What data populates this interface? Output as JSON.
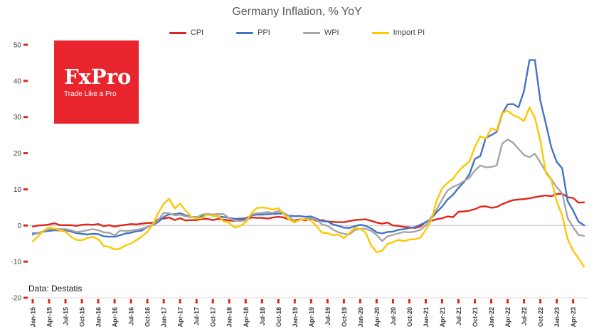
{
  "title": "Germany Inflation, % YoY",
  "footnote": "Data: Destatis",
  "logo": {
    "name": "FxPro",
    "tagline": "Trade Like a Pro",
    "bg": "#e8252d"
  },
  "legend": [
    {
      "label": "CPI",
      "color": "#e0261c"
    },
    {
      "label": "PPI",
      "color": "#4472c4"
    },
    {
      "label": "WPI",
      "color": "#a6a6a6"
    },
    {
      "label": "Import PI",
      "color": "#fdc800"
    }
  ],
  "chart_data": {
    "type": "line",
    "title": "Germany Inflation, % YoY",
    "xlabel": "",
    "ylabel": "",
    "ylim": [
      -20,
      50
    ],
    "y_ticks": [
      50,
      40,
      30,
      20,
      10,
      0,
      -10,
      -20
    ],
    "tick_color": "#e0261c",
    "grid": "zero-line-only",
    "legend_position": "top",
    "x_frequency": "monthly",
    "x_start": "Jan-15",
    "x_end": "Jun-23",
    "tick_every": 3,
    "x_tick_labels": [
      "Jan-15",
      "Apr-15",
      "Jul-15",
      "Oct-15",
      "Jan-16",
      "Apr-16",
      "Jul-16",
      "Oct-16",
      "Jan-17",
      "Apr-17",
      "Jul-17",
      "Oct-17",
      "Jan-18",
      "Apr-18",
      "Jul-18",
      "Oct-18",
      "Jan-19",
      "Apr-19",
      "Jul-19",
      "Oct-19",
      "Jan-20",
      "Apr-20",
      "Jul-20",
      "Oct-20",
      "Jan-21",
      "Apr-21",
      "Jul-21",
      "Oct-21",
      "Jan-22",
      "Apr-22",
      "Jul-22",
      "Oct-22",
      "Jan-23",
      "Apr-23"
    ],
    "series": [
      {
        "name": "CPI",
        "color": "#e0261c",
        "values": [
          -0.3,
          0.0,
          0.1,
          0.3,
          0.6,
          0.1,
          0.1,
          0.1,
          -0.1,
          0.2,
          0.3,
          0.2,
          0.4,
          -0.2,
          0.1,
          -0.3,
          0.0,
          0.2,
          0.4,
          0.3,
          0.5,
          0.7,
          0.7,
          1.7,
          1.9,
          2.2,
          1.5,
          2.0,
          1.4,
          1.5,
          1.5,
          1.8,
          1.8,
          1.5,
          1.8,
          1.6,
          1.4,
          1.2,
          1.5,
          1.5,
          2.2,
          2.1,
          2.1,
          1.9,
          2.2,
          2.4,
          2.2,
          1.6,
          1.4,
          1.7,
          1.4,
          2.0,
          1.3,
          1.5,
          1.1,
          1.0,
          0.9,
          0.9,
          1.2,
          1.5,
          1.6,
          1.7,
          1.3,
          0.8,
          0.5,
          0.8,
          0.0,
          -0.1,
          -0.4,
          -0.5,
          -0.7,
          -0.3,
          1.0,
          1.3,
          1.7,
          2.0,
          2.5,
          2.3,
          3.8,
          3.9,
          4.1,
          4.5,
          5.2,
          5.3,
          4.9,
          5.1,
          5.9,
          6.5,
          7.0,
          7.2,
          7.3,
          7.5,
          7.8,
          8.1,
          8.3,
          8.1,
          8.7,
          8.8,
          7.8,
          7.6,
          6.3,
          6.4
        ]
      },
      {
        "name": "PPI",
        "color": "#4472c4",
        "values": [
          -2.2,
          -2.1,
          -1.7,
          -1.5,
          -1.3,
          -1.4,
          -1.3,
          -1.7,
          -2.1,
          -2.3,
          -2.5,
          -2.3,
          -2.4,
          -3.0,
          -3.1,
          -3.1,
          -2.7,
          -2.2,
          -2.0,
          -1.6,
          -1.4,
          -0.4,
          0.1,
          1.0,
          2.4,
          3.1,
          3.1,
          3.4,
          2.8,
          2.4,
          2.3,
          2.6,
          3.1,
          2.7,
          2.5,
          2.3,
          2.1,
          1.8,
          1.9,
          2.0,
          2.7,
          3.0,
          3.0,
          3.1,
          3.2,
          3.3,
          3.3,
          2.7,
          2.6,
          2.6,
          2.4,
          2.5,
          1.9,
          1.2,
          1.1,
          0.3,
          -0.1,
          -0.6,
          -0.7,
          -0.2,
          0.2,
          -0.1,
          -0.8,
          -1.9,
          -2.2,
          -1.8,
          -1.7,
          -1.2,
          -1.0,
          -0.7,
          -0.5,
          0.2,
          0.9,
          1.9,
          3.7,
          5.2,
          7.2,
          8.5,
          10.4,
          12.0,
          14.2,
          18.4,
          19.2,
          24.2,
          25.0,
          25.9,
          30.9,
          33.5,
          33.6,
          32.7,
          37.2,
          45.8,
          45.8,
          34.5,
          28.2,
          21.6,
          17.6,
          15.8,
          6.7,
          4.1,
          1.0,
          0.1
        ]
      },
      {
        "name": "WPI",
        "color": "#a6a6a6",
        "values": [
          -2.6,
          -2.1,
          -1.5,
          -1.0,
          -0.9,
          -1.0,
          -1.0,
          -1.3,
          -1.8,
          -1.6,
          -1.3,
          -1.0,
          -1.3,
          -1.9,
          -2.0,
          -2.7,
          -1.4,
          -1.5,
          -1.4,
          -1.2,
          -0.9,
          -0.4,
          0.3,
          1.5,
          3.5,
          3.4,
          2.8,
          3.0,
          2.5,
          2.3,
          2.2,
          3.0,
          3.2,
          3.0,
          3.2,
          3.1,
          2.0,
          1.3,
          1.2,
          1.4,
          2.9,
          3.4,
          3.5,
          3.7,
          3.5,
          4.0,
          3.5,
          2.5,
          1.1,
          1.6,
          1.8,
          2.1,
          1.6,
          0.3,
          -0.1,
          -1.1,
          -1.9,
          -2.3,
          -2.5,
          -1.3,
          -0.9,
          -0.9,
          -1.5,
          -2.6,
          -4.3,
          -3.0,
          -2.6,
          -2.2,
          -1.8,
          -1.9,
          -1.7,
          -1.2,
          0.0,
          2.3,
          4.4,
          7.2,
          9.7,
          10.7,
          11.3,
          12.3,
          13.2,
          15.2,
          16.6,
          16.1,
          16.2,
          16.6,
          22.6,
          23.8,
          22.9,
          21.2,
          19.5,
          18.9,
          19.9,
          17.4,
          14.9,
          12.8,
          10.6,
          8.9,
          2.0,
          -0.5,
          -2.6,
          -2.9
        ]
      },
      {
        "name": "Import PI",
        "color": "#fdc800",
        "values": [
          -4.4,
          -3.0,
          -1.4,
          -0.6,
          -0.8,
          -1.4,
          -1.7,
          -3.1,
          -4.0,
          -4.1,
          -3.5,
          -3.1,
          -3.8,
          -5.7,
          -5.9,
          -6.6,
          -6.4,
          -5.5,
          -5.0,
          -4.1,
          -3.0,
          -1.8,
          0.3,
          3.5,
          6.0,
          7.4,
          4.7,
          6.1,
          4.1,
          2.5,
          1.9,
          2.1,
          3.0,
          2.6,
          2.7,
          1.1,
          0.7,
          -0.6,
          -0.1,
          0.8,
          3.2,
          4.8,
          5.0,
          4.8,
          4.4,
          4.8,
          3.1,
          1.6,
          0.8,
          1.6,
          1.7,
          1.4,
          -0.2,
          -2.0,
          -2.1,
          -2.7,
          -2.5,
          -3.5,
          -2.1,
          -0.7,
          -0.9,
          -2.0,
          -5.5,
          -7.4,
          -7.0,
          -5.1,
          -4.6,
          -4.0,
          -4.3,
          -3.9,
          -3.8,
          -3.4,
          -1.2,
          1.4,
          6.9,
          10.3,
          11.8,
          12.9,
          15.0,
          16.5,
          17.7,
          21.7,
          24.7,
          24.0,
          26.9,
          26.3,
          31.2,
          31.7,
          30.6,
          29.9,
          28.9,
          32.7,
          29.8,
          23.5,
          14.5,
          12.6,
          6.6,
          2.8,
          -3.8,
          -7.0,
          -9.1,
          -11.4
        ]
      }
    ]
  }
}
